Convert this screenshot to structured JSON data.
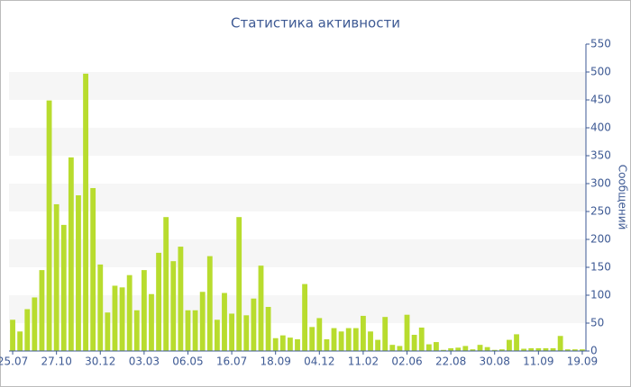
{
  "chart_data": {
    "type": "bar",
    "title": "Статистика активности",
    "y_label": "Сообщений",
    "categories": [
      "25.07",
      null,
      null,
      null,
      null,
      null,
      "27.10",
      null,
      null,
      null,
      null,
      null,
      "30.12",
      null,
      null,
      null,
      null,
      null,
      "03.03",
      null,
      null,
      null,
      null,
      null,
      "06.05",
      null,
      null,
      null,
      null,
      null,
      "16.07",
      null,
      null,
      null,
      null,
      null,
      "18.09",
      null,
      null,
      null,
      null,
      null,
      "04.12",
      null,
      null,
      null,
      null,
      null,
      "11.02",
      null,
      null,
      null,
      null,
      null,
      "02.06",
      null,
      null,
      null,
      null,
      null,
      "22.08",
      null,
      null,
      null,
      null,
      null,
      "30.08",
      null,
      null,
      null,
      null,
      null,
      "11.09",
      null,
      null,
      null,
      null,
      null,
      "19.09"
    ],
    "values": [
      56,
      35,
      75,
      96,
      145,
      449,
      263,
      226,
      347,
      279,
      497,
      292,
      155,
      69,
      117,
      114,
      136,
      73,
      145,
      102,
      176,
      240,
      161,
      187,
      73,
      73,
      106,
      170,
      56,
      104,
      67,
      240,
      64,
      94,
      153,
      79,
      23,
      28,
      24,
      21,
      120,
      43,
      59,
      21,
      41,
      35,
      41,
      41,
      63,
      35,
      20,
      61,
      11,
      9,
      65,
      29,
      42,
      12,
      16,
      2,
      5,
      6,
      9,
      3,
      11,
      7,
      2,
      3,
      20,
      30,
      4,
      5,
      5,
      5,
      5,
      27,
      3,
      3,
      3
    ],
    "color": "#b8dc2e",
    "ylim": [
      0,
      550
    ],
    "yticks": [
      0,
      50,
      100,
      150,
      200,
      250,
      300,
      350,
      400,
      450,
      500,
      550
    ],
    "y_axis_side": "right",
    "banded_grid": true
  }
}
